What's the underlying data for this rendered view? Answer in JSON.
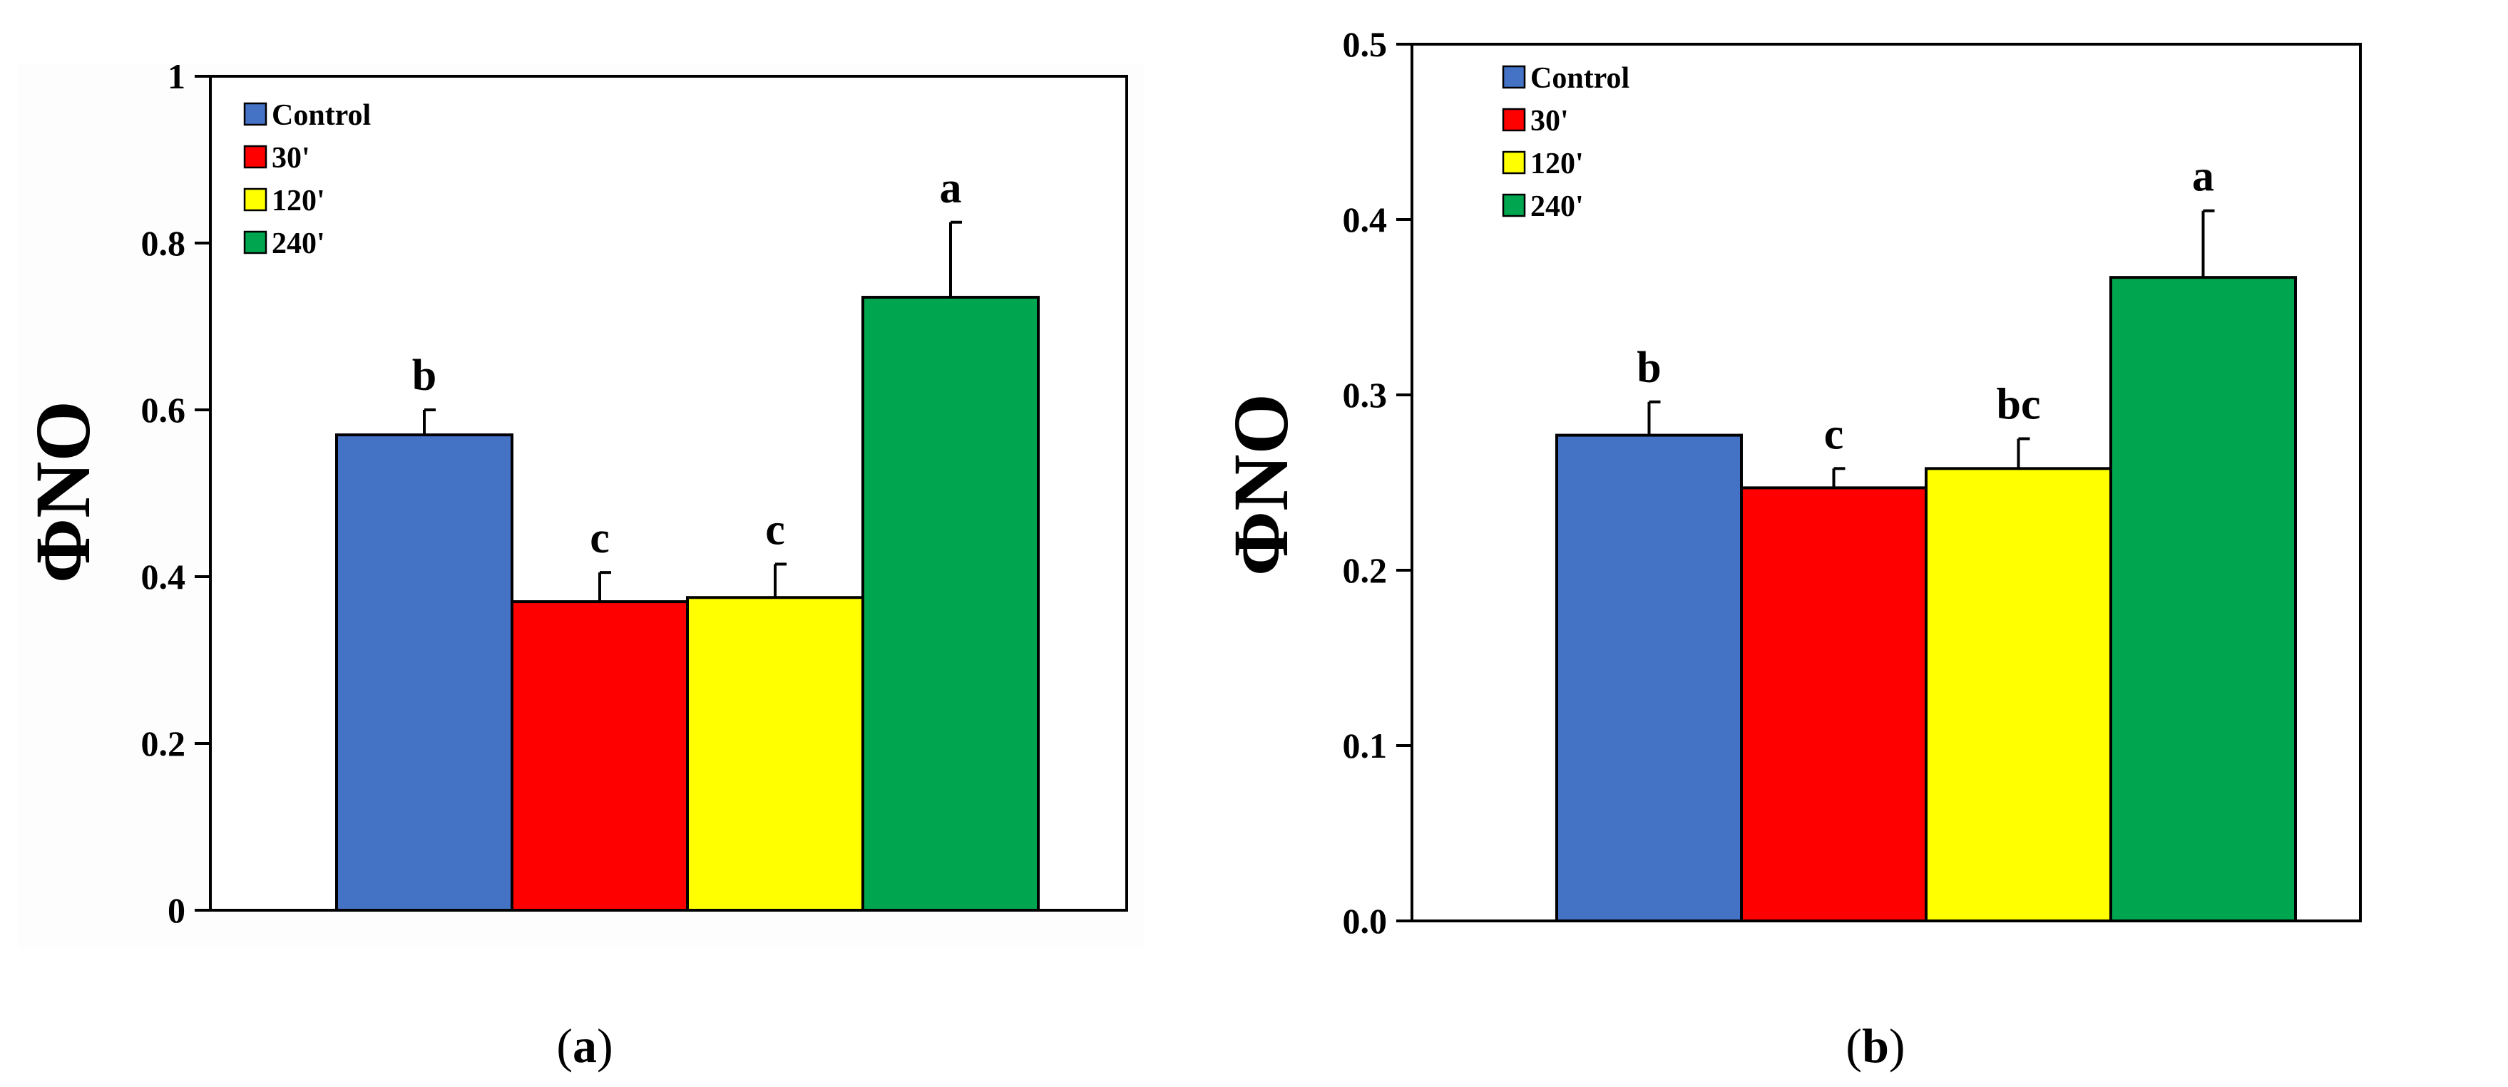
{
  "colors": {
    "Control": "#4472c4",
    "30'": "#ff0000",
    "120'": "#ffff00",
    "240'": "#00a64f",
    "bar_stroke": "#000000"
  },
  "chart_data": [
    {
      "id": "a",
      "type": "bar",
      "caption": {
        "open": "(",
        "letter": "a",
        "close": ")"
      },
      "ylabel": "ΦNO",
      "xlabel": "",
      "ylim": [
        0,
        1
      ],
      "yticks": [
        0,
        0.2,
        0.4,
        0.6,
        0.8,
        1
      ],
      "ytick_labels": [
        "0",
        "0.2",
        "0.4",
        "0.6",
        "0.8",
        "1"
      ],
      "legend": {
        "position": "top-left",
        "entries": [
          "Control",
          "30'",
          "120'",
          "240'"
        ]
      },
      "series": [
        {
          "name": "Control",
          "value": 0.57,
          "error": 0.03,
          "letter": "b"
        },
        {
          "name": "30'",
          "value": 0.37,
          "error": 0.035,
          "letter": "c"
        },
        {
          "name": "120'",
          "value": 0.375,
          "error": 0.04,
          "letter": "c"
        },
        {
          "name": "240'",
          "value": 0.735,
          "error": 0.09,
          "letter": "a"
        }
      ]
    },
    {
      "id": "b",
      "type": "bar",
      "caption": {
        "open": "(",
        "letter": "b",
        "close": ")"
      },
      "ylabel": "ΦNO",
      "xlabel": "",
      "ylim": [
        0,
        0.5
      ],
      "yticks": [
        0,
        0.1,
        0.2,
        0.3,
        0.4,
        0.5
      ],
      "ytick_labels": [
        "0.0",
        "0.1",
        "0.2",
        "0.3",
        "0.4",
        "0.5"
      ],
      "legend": {
        "position": "top-left",
        "entries": [
          "Control",
          "30'",
          "120'",
          "240'"
        ]
      },
      "series": [
        {
          "name": "Control",
          "value": 0.277,
          "error": 0.019,
          "letter": "b"
        },
        {
          "name": "30'",
          "value": 0.247,
          "error": 0.011,
          "letter": "c"
        },
        {
          "name": "120'",
          "value": 0.258,
          "error": 0.017,
          "letter": "bc"
        },
        {
          "name": "240'",
          "value": 0.367,
          "error": 0.038,
          "letter": "a"
        }
      ]
    }
  ]
}
